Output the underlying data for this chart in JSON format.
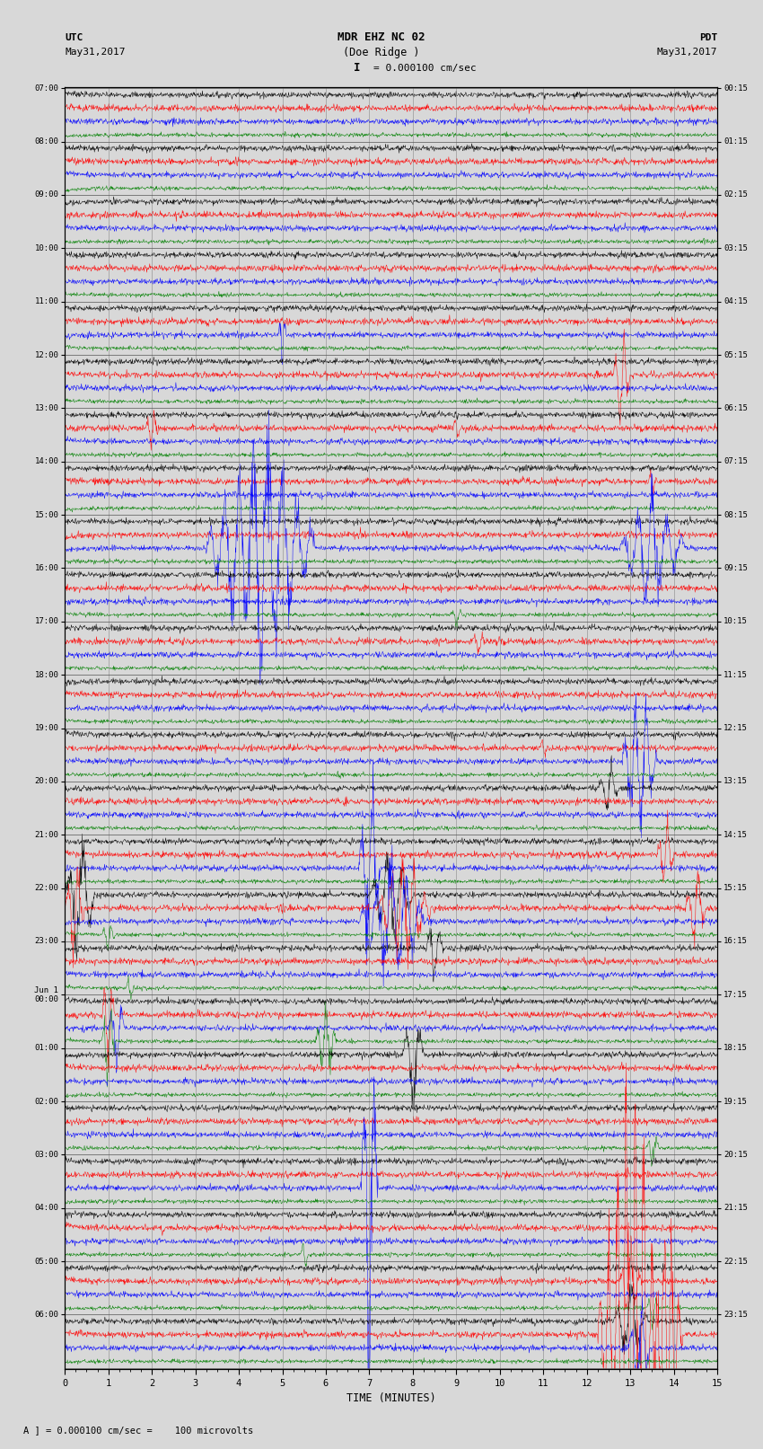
{
  "title_line1": "MDR EHZ NC 02",
  "title_line2": "(Doe Ridge )",
  "scale_label": "= 0.000100 cm/sec",
  "left_label_top": "UTC",
  "left_label_date": "May31,2017",
  "right_label_top": "PDT",
  "right_label_date": "May31,2017",
  "xlabel": "TIME (MINUTES)",
  "footer": "A ] = 0.000100 cm/sec =    100 microvolts",
  "utc_hour_labels": [
    "07:00",
    "08:00",
    "09:00",
    "10:00",
    "11:00",
    "12:00",
    "13:00",
    "14:00",
    "15:00",
    "16:00",
    "17:00",
    "18:00",
    "19:00",
    "20:00",
    "21:00",
    "22:00",
    "23:00",
    "Jun 1\n00:00",
    "01:00",
    "02:00",
    "03:00",
    "04:00",
    "05:00",
    "06:00"
  ],
  "pdt_hour_labels": [
    "00:15",
    "01:15",
    "02:15",
    "03:15",
    "04:15",
    "05:15",
    "06:15",
    "07:15",
    "08:15",
    "09:15",
    "10:15",
    "11:15",
    "12:15",
    "13:15",
    "14:15",
    "15:15",
    "16:15",
    "17:15",
    "18:15",
    "19:15",
    "20:15",
    "21:15",
    "22:15",
    "23:15"
  ],
  "n_hours": 24,
  "traces_per_hour": 4,
  "colors": [
    "black",
    "red",
    "blue",
    "green"
  ],
  "n_minutes": 15,
  "samples_per_row": 1500,
  "background_color": "#d8d8d8",
  "trace_area_bg": "#d8d8d8",
  "grid_color": "#888888",
  "separator_color": "#555555",
  "fig_width": 8.5,
  "fig_height": 16.13,
  "dpi": 100,
  "noise_base": 0.018,
  "trace_scale": 0.32
}
